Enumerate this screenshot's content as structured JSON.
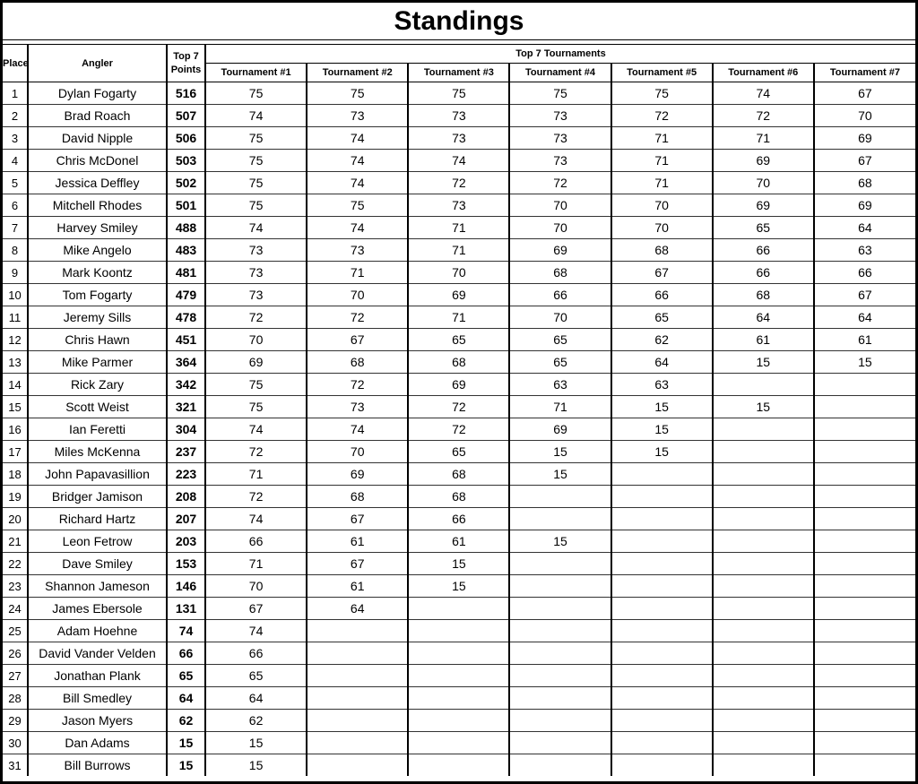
{
  "title": "Standings",
  "header": {
    "place": "Place",
    "angler": "Angler",
    "points_line1": "Top 7",
    "points_line2": "Points",
    "tournaments_group": "Top 7 Tournaments",
    "tournaments": [
      "Tournament #1",
      "Tournament #2",
      "Tournament #3",
      "Tournament #4",
      "Tournament #5",
      "Tournament #6",
      "Tournament #7"
    ]
  },
  "standings": [
    {
      "place": 1,
      "angler": "Dylan Fogarty",
      "points": 516,
      "scores": [
        "75",
        "75",
        "75",
        "75",
        "75",
        "74",
        "67"
      ]
    },
    {
      "place": 2,
      "angler": "Brad Roach",
      "points": 507,
      "scores": [
        "74",
        "73",
        "73",
        "73",
        "72",
        "72",
        "70"
      ]
    },
    {
      "place": 3,
      "angler": "David Nipple",
      "points": 506,
      "scores": [
        "75",
        "74",
        "73",
        "73",
        "71",
        "71",
        "69"
      ]
    },
    {
      "place": 4,
      "angler": "Chris McDonel",
      "points": 503,
      "scores": [
        "75",
        "74",
        "74",
        "73",
        "71",
        "69",
        "67"
      ]
    },
    {
      "place": 5,
      "angler": "Jessica Deffley",
      "points": 502,
      "scores": [
        "75",
        "74",
        "72",
        "72",
        "71",
        "70",
        "68"
      ]
    },
    {
      "place": 6,
      "angler": "Mitchell Rhodes",
      "points": 501,
      "scores": [
        "75",
        "75",
        "73",
        "70",
        "70",
        "69",
        "69"
      ]
    },
    {
      "place": 7,
      "angler": "Harvey Smiley",
      "points": 488,
      "scores": [
        "74",
        "74",
        "71",
        "70",
        "70",
        "65",
        "64"
      ]
    },
    {
      "place": 8,
      "angler": "Mike Angelo",
      "points": 483,
      "scores": [
        "73",
        "73",
        "71",
        "69",
        "68",
        "66",
        "63"
      ]
    },
    {
      "place": 9,
      "angler": "Mark Koontz",
      "points": 481,
      "scores": [
        "73",
        "71",
        "70",
        "68",
        "67",
        "66",
        "66"
      ]
    },
    {
      "place": 10,
      "angler": "Tom Fogarty",
      "points": 479,
      "scores": [
        "73",
        "70",
        "69",
        "66",
        "66",
        "68",
        "67"
      ]
    },
    {
      "place": 11,
      "angler": "Jeremy Sills",
      "points": 478,
      "scores": [
        "72",
        "72",
        "71",
        "70",
        "65",
        "64",
        "64"
      ]
    },
    {
      "place": 12,
      "angler": "Chris Hawn",
      "points": 451,
      "scores": [
        "70",
        "67",
        "65",
        "65",
        "62",
        "61",
        "61"
      ]
    },
    {
      "place": 13,
      "angler": "Mike Parmer",
      "points": 364,
      "scores": [
        "69",
        "68",
        "68",
        "65",
        "64",
        "15",
        "15"
      ]
    },
    {
      "place": 14,
      "angler": "Rick Zary",
      "points": 342,
      "scores": [
        "75",
        "72",
        "69",
        "63",
        "63",
        "",
        ""
      ]
    },
    {
      "place": 15,
      "angler": "Scott Weist",
      "points": 321,
      "scores": [
        "75",
        "73",
        "72",
        "71",
        "15",
        "15",
        ""
      ]
    },
    {
      "place": 16,
      "angler": "Ian Feretti",
      "points": 304,
      "scores": [
        "74",
        "74",
        "72",
        "69",
        "15",
        "",
        ""
      ]
    },
    {
      "place": 17,
      "angler": "Miles McKenna",
      "points": 237,
      "scores": [
        "72",
        "70",
        "65",
        "15",
        "15",
        "",
        ""
      ]
    },
    {
      "place": 18,
      "angler": "John Papavasillion",
      "points": 223,
      "scores": [
        "71",
        "69",
        "68",
        "15",
        "",
        "",
        ""
      ]
    },
    {
      "place": 19,
      "angler": "Bridger Jamison",
      "points": 208,
      "scores": [
        "72",
        "68",
        "68",
        "",
        "",
        "",
        ""
      ]
    },
    {
      "place": 20,
      "angler": "Richard Hartz",
      "points": 207,
      "scores": [
        "74",
        "67",
        "66",
        "",
        "",
        "",
        ""
      ]
    },
    {
      "place": 21,
      "angler": "Leon Fetrow",
      "points": 203,
      "scores": [
        "66",
        "61",
        "61",
        "15",
        "",
        "",
        ""
      ]
    },
    {
      "place": 22,
      "angler": "Dave Smiley",
      "points": 153,
      "scores": [
        "71",
        "67",
        "15",
        "",
        "",
        "",
        ""
      ]
    },
    {
      "place": 23,
      "angler": "Shannon Jameson",
      "points": 146,
      "scores": [
        "70",
        "61",
        "15",
        "",
        "",
        "",
        ""
      ]
    },
    {
      "place": 24,
      "angler": "James Ebersole",
      "points": 131,
      "scores": [
        "67",
        "64",
        "",
        "",
        "",
        "",
        ""
      ]
    },
    {
      "place": 25,
      "angler": "Adam Hoehne",
      "points": 74,
      "scores": [
        "74",
        "",
        "",
        "",
        "",
        "",
        ""
      ]
    },
    {
      "place": 26,
      "angler": "David Vander Velden",
      "points": 66,
      "scores": [
        "66",
        "",
        "",
        "",
        "",
        "",
        ""
      ]
    },
    {
      "place": 27,
      "angler": "Jonathan Plank",
      "points": 65,
      "scores": [
        "65",
        "",
        "",
        "",
        "",
        "",
        ""
      ]
    },
    {
      "place": 28,
      "angler": "Bill Smedley",
      "points": 64,
      "scores": [
        "64",
        "",
        "",
        "",
        "",
        "",
        ""
      ]
    },
    {
      "place": 29,
      "angler": "Jason Myers",
      "points": 62,
      "scores": [
        "62",
        "",
        "",
        "",
        "",
        "",
        ""
      ]
    },
    {
      "place": 30,
      "angler": "Dan Adams",
      "points": 15,
      "scores": [
        "15",
        "",
        "",
        "",
        "",
        "",
        ""
      ]
    },
    {
      "place": 31,
      "angler": "Bill Burrows",
      "points": 15,
      "scores": [
        "15",
        "",
        "",
        "",
        "",
        "",
        ""
      ]
    }
  ]
}
